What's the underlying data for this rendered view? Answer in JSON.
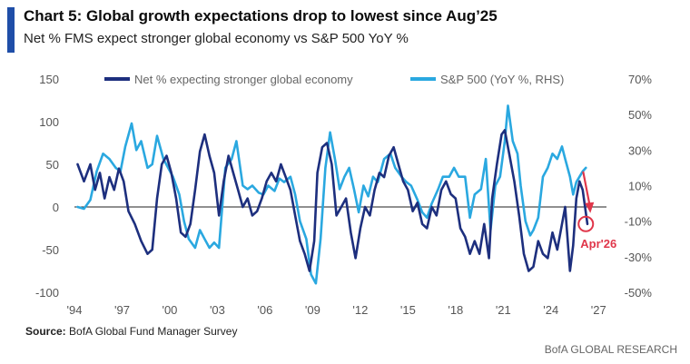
{
  "header": {
    "title": "Chart 5: Global growth expectations drop to lowest since Aug’25",
    "subtitle": "Net % FMS expect stronger global economy vs S&P 500 YoY %"
  },
  "colors": {
    "accent": "#1f4ea8",
    "net": "#1d2f7e",
    "sp500": "#2aa8e0",
    "annotation": "#e0364a"
  },
  "chart_data": {
    "type": "line",
    "xlabel": "",
    "ylabel": "",
    "xlim": [
      1994,
      2027.5
    ],
    "ylim_left": [
      -100,
      150
    ],
    "ylim_right": [
      -50,
      70
    ],
    "y_ticks_left": [
      150,
      100,
      50,
      0,
      -50,
      -100
    ],
    "y_ticks_right": [
      70,
      50,
      30,
      10,
      -10,
      -30,
      -50
    ],
    "y_tick_labels_right": [
      "70%",
      "50%",
      "30%",
      "10%",
      "-10%",
      "-30%",
      "-50%"
    ],
    "x_ticks": [
      1994,
      1997,
      2000,
      2003,
      2006,
      2009,
      2012,
      2015,
      2018,
      2021,
      2024,
      2027
    ],
    "x_tick_labels": [
      "'94",
      "'97",
      "'00",
      "'03",
      "'06",
      "'09",
      "'12",
      "'15",
      "'18",
      "'21",
      "'24",
      "'27"
    ],
    "zero_line": 0,
    "legend": {
      "position": "top",
      "entries": [
        "Net % expecting stronger global economy",
        "S&P 500 (YoY %, RHS)"
      ]
    },
    "series": [
      {
        "name": "Net % expecting stronger global economy",
        "axis": "left",
        "points": [
          [
            1994.2,
            50
          ],
          [
            1994.6,
            30
          ],
          [
            1995.0,
            50
          ],
          [
            1995.3,
            20
          ],
          [
            1995.6,
            40
          ],
          [
            1995.9,
            10
          ],
          [
            1996.2,
            35
          ],
          [
            1996.5,
            20
          ],
          [
            1996.8,
            45
          ],
          [
            1997.1,
            30
          ],
          [
            1997.4,
            -5
          ],
          [
            1997.8,
            -20
          ],
          [
            1998.2,
            -40
          ],
          [
            1998.6,
            -55
          ],
          [
            1998.9,
            -50
          ],
          [
            1999.2,
            10
          ],
          [
            1999.5,
            50
          ],
          [
            1999.8,
            60
          ],
          [
            2000.1,
            40
          ],
          [
            2000.4,
            10
          ],
          [
            2000.7,
            -30
          ],
          [
            2001.0,
            -35
          ],
          [
            2001.3,
            -20
          ],
          [
            2001.6,
            20
          ],
          [
            2001.9,
            65
          ],
          [
            2002.2,
            85
          ],
          [
            2002.5,
            60
          ],
          [
            2002.8,
            40
          ],
          [
            2003.1,
            -10
          ],
          [
            2003.4,
            30
          ],
          [
            2003.7,
            60
          ],
          [
            2004.0,
            40
          ],
          [
            2004.3,
            20
          ],
          [
            2004.6,
            0
          ],
          [
            2004.9,
            10
          ],
          [
            2005.2,
            -10
          ],
          [
            2005.5,
            -5
          ],
          [
            2005.8,
            10
          ],
          [
            2006.1,
            30
          ],
          [
            2006.4,
            40
          ],
          [
            2006.7,
            30
          ],
          [
            2007.0,
            50
          ],
          [
            2007.3,
            35
          ],
          [
            2007.6,
            20
          ],
          [
            2007.9,
            -10
          ],
          [
            2008.2,
            -40
          ],
          [
            2008.5,
            -55
          ],
          [
            2008.8,
            -75
          ],
          [
            2009.1,
            -40
          ],
          [
            2009.3,
            40
          ],
          [
            2009.6,
            70
          ],
          [
            2009.9,
            75
          ],
          [
            2010.2,
            50
          ],
          [
            2010.5,
            -10
          ],
          [
            2010.8,
            0
          ],
          [
            2011.1,
            10
          ],
          [
            2011.4,
            -30
          ],
          [
            2011.7,
            -60
          ],
          [
            2012.0,
            -25
          ],
          [
            2012.3,
            0
          ],
          [
            2012.6,
            -10
          ],
          [
            2012.9,
            20
          ],
          [
            2013.2,
            40
          ],
          [
            2013.5,
            35
          ],
          [
            2013.8,
            60
          ],
          [
            2014.1,
            70
          ],
          [
            2014.4,
            50
          ],
          [
            2014.7,
            30
          ],
          [
            2015.0,
            20
          ],
          [
            2015.3,
            -5
          ],
          [
            2015.6,
            5
          ],
          [
            2015.9,
            -20
          ],
          [
            2016.2,
            -25
          ],
          [
            2016.5,
            0
          ],
          [
            2016.8,
            -10
          ],
          [
            2017.1,
            20
          ],
          [
            2017.4,
            30
          ],
          [
            2017.7,
            15
          ],
          [
            2018.0,
            10
          ],
          [
            2018.3,
            -25
          ],
          [
            2018.6,
            -35
          ],
          [
            2018.9,
            -55
          ],
          [
            2019.2,
            -40
          ],
          [
            2019.5,
            -55
          ],
          [
            2019.8,
            -20
          ],
          [
            2020.1,
            -60
          ],
          [
            2020.3,
            10
          ],
          [
            2020.6,
            50
          ],
          [
            2020.9,
            85
          ],
          [
            2021.1,
            90
          ],
          [
            2021.4,
            60
          ],
          [
            2021.7,
            30
          ],
          [
            2022.0,
            -10
          ],
          [
            2022.3,
            -55
          ],
          [
            2022.6,
            -75
          ],
          [
            2022.9,
            -70
          ],
          [
            2023.2,
            -40
          ],
          [
            2023.5,
            -55
          ],
          [
            2023.8,
            -60
          ],
          [
            2024.1,
            -30
          ],
          [
            2024.4,
            -50
          ],
          [
            2024.7,
            -20
          ],
          [
            2024.9,
            0
          ],
          [
            2025.2,
            -75
          ],
          [
            2025.4,
            -45
          ],
          [
            2025.6,
            10
          ],
          [
            2025.8,
            30
          ],
          [
            2026.0,
            20
          ],
          [
            2026.3,
            -20
          ]
        ]
      },
      {
        "name": "S&P 500 (YoY %, RHS)",
        "axis": "right",
        "points": [
          [
            1994.2,
            -2
          ],
          [
            1994.6,
            -3
          ],
          [
            1995.0,
            2
          ],
          [
            1995.4,
            18
          ],
          [
            1995.8,
            28
          ],
          [
            1996.2,
            25
          ],
          [
            1996.6,
            20
          ],
          [
            1996.9,
            18
          ],
          [
            1997.2,
            32
          ],
          [
            1997.6,
            45
          ],
          [
            1997.9,
            30
          ],
          [
            1998.2,
            35
          ],
          [
            1998.6,
            20
          ],
          [
            1998.9,
            22
          ],
          [
            1999.2,
            38
          ],
          [
            1999.6,
            25
          ],
          [
            1999.9,
            20
          ],
          [
            2000.2,
            15
          ],
          [
            2000.6,
            5
          ],
          [
            2000.9,
            -10
          ],
          [
            2001.2,
            -20
          ],
          [
            2001.6,
            -25
          ],
          [
            2001.9,
            -15
          ],
          [
            2002.2,
            -20
          ],
          [
            2002.5,
            -25
          ],
          [
            2002.8,
            -22
          ],
          [
            2003.1,
            -25
          ],
          [
            2003.5,
            20
          ],
          [
            2003.9,
            25
          ],
          [
            2004.2,
            35
          ],
          [
            2004.6,
            10
          ],
          [
            2004.9,
            8
          ],
          [
            2005.2,
            10
          ],
          [
            2005.6,
            6
          ],
          [
            2005.9,
            5
          ],
          [
            2006.2,
            10
          ],
          [
            2006.6,
            7
          ],
          [
            2006.9,
            14
          ],
          [
            2007.2,
            12
          ],
          [
            2007.6,
            15
          ],
          [
            2007.9,
            5
          ],
          [
            2008.2,
            -10
          ],
          [
            2008.6,
            -20
          ],
          [
            2008.9,
            -40
          ],
          [
            2009.2,
            -45
          ],
          [
            2009.5,
            -20
          ],
          [
            2009.8,
            20
          ],
          [
            2010.1,
            40
          ],
          [
            2010.4,
            25
          ],
          [
            2010.7,
            8
          ],
          [
            2011.0,
            15
          ],
          [
            2011.3,
            20
          ],
          [
            2011.6,
            8
          ],
          [
            2011.9,
            -5
          ],
          [
            2012.2,
            10
          ],
          [
            2012.5,
            4
          ],
          [
            2012.8,
            15
          ],
          [
            2013.1,
            12
          ],
          [
            2013.5,
            25
          ],
          [
            2013.9,
            28
          ],
          [
            2014.2,
            20
          ],
          [
            2014.6,
            15
          ],
          [
            2014.9,
            12
          ],
          [
            2015.2,
            10
          ],
          [
            2015.6,
            2
          ],
          [
            2015.9,
            -5
          ],
          [
            2016.2,
            -8
          ],
          [
            2016.5,
            0
          ],
          [
            2016.9,
            8
          ],
          [
            2017.2,
            15
          ],
          [
            2017.6,
            15
          ],
          [
            2017.9,
            20
          ],
          [
            2018.2,
            15
          ],
          [
            2018.6,
            15
          ],
          [
            2018.9,
            -8
          ],
          [
            2019.2,
            5
          ],
          [
            2019.6,
            8
          ],
          [
            2019.9,
            25
          ],
          [
            2020.2,
            -15
          ],
          [
            2020.5,
            10
          ],
          [
            2020.8,
            15
          ],
          [
            2021.1,
            35
          ],
          [
            2021.3,
            55
          ],
          [
            2021.6,
            35
          ],
          [
            2021.9,
            28
          ],
          [
            2022.1,
            10
          ],
          [
            2022.4,
            -10
          ],
          [
            2022.7,
            -18
          ],
          [
            2022.9,
            -15
          ],
          [
            2023.2,
            -8
          ],
          [
            2023.5,
            15
          ],
          [
            2023.8,
            20
          ],
          [
            2024.1,
            28
          ],
          [
            2024.4,
            25
          ],
          [
            2024.7,
            32
          ],
          [
            2024.9,
            25
          ],
          [
            2025.2,
            15
          ],
          [
            2025.4,
            5
          ],
          [
            2025.6,
            12
          ],
          [
            2025.8,
            15
          ],
          [
            2026.0,
            18
          ],
          [
            2026.2,
            20
          ]
        ]
      }
    ],
    "annotations": [
      {
        "text": "Apr'26",
        "x": 2026.2,
        "y": -20,
        "marker": "circle",
        "arrow": "down"
      }
    ]
  },
  "footer": {
    "source_label": "Source:",
    "source_text": " BofA Global Fund Manager Survey",
    "brand": "BofA GLOBAL RESEARCH"
  }
}
